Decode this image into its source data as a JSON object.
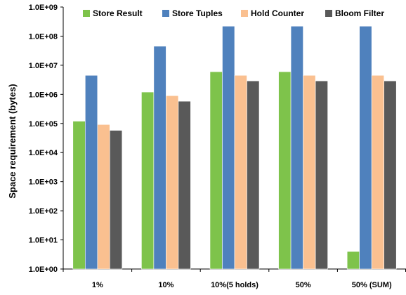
{
  "chart_data": {
    "type": "bar",
    "title": "",
    "xlabel": "",
    "ylabel": "Space  requirement  (bytes)",
    "yscale": "log",
    "ylim": [
      1,
      1000000000
    ],
    "grid": false,
    "legend_position": "top",
    "categories": [
      "1%",
      "10%",
      "10%(5 holds)",
      "50%",
      "50% (SUM)"
    ],
    "y_tick_labels": [
      "1.0E+00",
      "1.0E+01",
      "1.0E+02",
      "1.0E+03",
      "1.0E+04",
      "1.0E+05",
      "1.0E+06",
      "1.0E+07",
      "1.0E+08",
      "1.0E+09"
    ],
    "series": [
      {
        "name": "Store Result",
        "color": "#7ec34b",
        "values": [
          120000,
          1200000,
          6000000,
          6000000,
          4
        ]
      },
      {
        "name": "Store Tuples",
        "color": "#4f81bd",
        "values": [
          4500000,
          45000000,
          220000000,
          220000000,
          220000000
        ]
      },
      {
        "name": "Hold Counter",
        "color": "#fac090",
        "values": [
          92000,
          900000,
          4500000,
          4500000,
          4500000
        ]
      },
      {
        "name": "Bloom Filter",
        "color": "#595959",
        "values": [
          58000,
          580000,
          2900000,
          2900000,
          2900000
        ]
      }
    ]
  }
}
